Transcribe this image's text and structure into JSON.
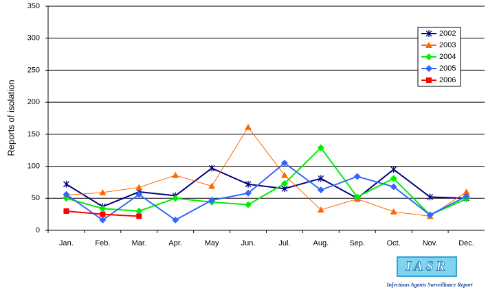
{
  "chart_data": {
    "type": "line",
    "y_label": "Reports of isolation",
    "categories": [
      "Jan.",
      "Feb.",
      "Mar.",
      "Apr.",
      "May",
      "Jun.",
      "Jul.",
      "Aug.",
      "Sep.",
      "Oct.",
      "Nov.",
      "Dec."
    ],
    "series": [
      {
        "name": "2002",
        "color": "#000080",
        "marker": "star",
        "values": [
          72,
          37,
          60,
          54,
          97,
          72,
          65,
          81,
          50,
          95,
          52,
          50
        ]
      },
      {
        "name": "2003",
        "color": "#ff6600",
        "marker": "triangle",
        "values": [
          55,
          59,
          67,
          86,
          69,
          161,
          86,
          32,
          49,
          29,
          22,
          60
        ]
      },
      {
        "name": "2004",
        "color": "#00ee00",
        "marker": "diamond",
        "values": [
          50,
          34,
          30,
          50,
          44,
          40,
          73,
          129,
          52,
          81,
          24,
          49
        ]
      },
      {
        "name": "2005",
        "color": "#3366ff",
        "marker": "diamond",
        "values": [
          56,
          16,
          56,
          16,
          47,
          58,
          105,
          63,
          84,
          68,
          24,
          53
        ]
      },
      {
        "name": "2006",
        "color": "#ff0000",
        "marker": "square",
        "values": [
          30,
          25,
          22,
          null,
          null,
          null,
          null,
          null,
          null,
          null,
          null,
          null
        ]
      }
    ],
    "ylim": [
      0,
      350
    ],
    "yticks": [
      0,
      50,
      100,
      150,
      200,
      250,
      300,
      350
    ],
    "grid": true,
    "legend": "top-right",
    "annotations": [
      "IASR",
      "Infectious Agents Surveillance Report"
    ]
  }
}
